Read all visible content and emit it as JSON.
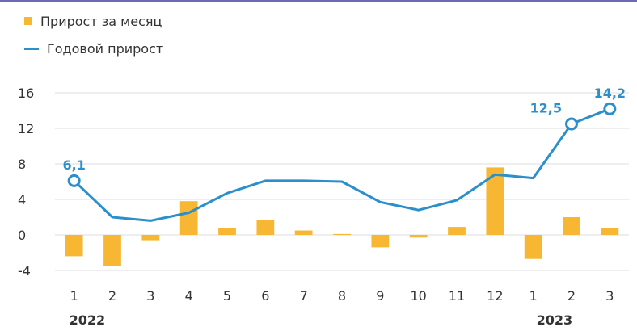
{
  "chart_data": {
    "type": "bar+line",
    "categories": [
      "1",
      "2",
      "3",
      "4",
      "5",
      "6",
      "7",
      "8",
      "9",
      "10",
      "11",
      "12",
      "1",
      "2",
      "3"
    ],
    "year_labels": [
      {
        "label": "2022",
        "index": 0
      },
      {
        "label": "2023",
        "index": 12
      }
    ],
    "series": [
      {
        "name": "Прирост за месяц",
        "type": "bar",
        "color": "#f7b733",
        "values": [
          -2.4,
          -3.5,
          -0.6,
          3.8,
          0.8,
          1.7,
          0.5,
          0.1,
          -1.4,
          -0.3,
          0.9,
          7.6,
          -2.7,
          2.0,
          0.8
        ]
      },
      {
        "name": "Годовой прирост",
        "type": "line",
        "color": "#2a8fca",
        "values": [
          6.1,
          2.0,
          1.6,
          2.5,
          4.7,
          6.1,
          6.1,
          6.0,
          3.7,
          2.8,
          3.9,
          6.8,
          6.4,
          12.5,
          14.2
        ]
      }
    ],
    "annotations": [
      {
        "index": 0,
        "text": "6,1"
      },
      {
        "index": 13,
        "text": "12,5"
      },
      {
        "index": 14,
        "text": "14,2"
      }
    ],
    "yticks": [
      -4,
      0,
      4,
      8,
      12,
      16
    ],
    "ylim": [
      -4,
      16
    ],
    "grid": true,
    "legend": "top-left"
  }
}
